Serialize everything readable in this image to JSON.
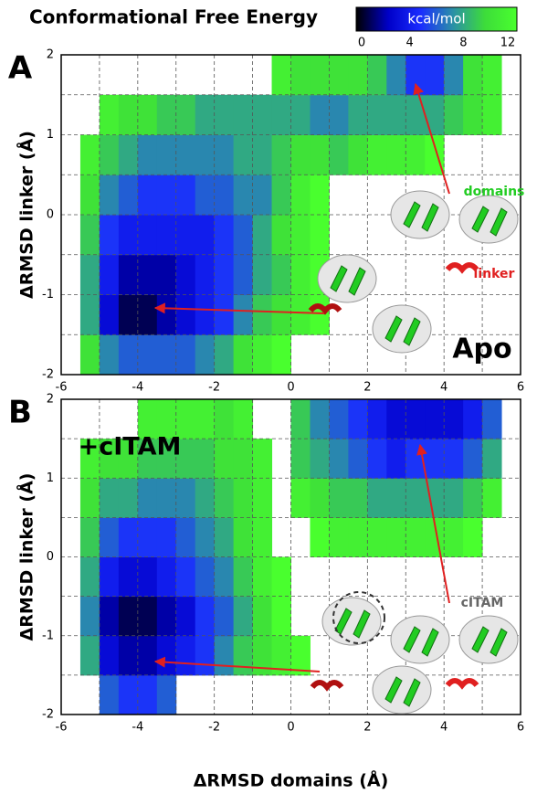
{
  "colorbar": {
    "title": "Conformational Free Energy",
    "label": "kcal/mol",
    "lim": [
      0,
      12
    ],
    "ticks": [
      0,
      4,
      8,
      12
    ],
    "colormap": [
      "#000000",
      "#0000c8",
      "#1a2cff",
      "#2a8fa8",
      "#3ddc3a",
      "#49ff2e"
    ]
  },
  "chart_data": [
    {
      "type": "heatmap",
      "panel": "A",
      "label": "Apo",
      "ylabel": "ΔRMSD linker (Å)",
      "annotations": [
        {
          "text": "domains",
          "color": "#22cc22"
        },
        {
          "text": "linker",
          "color": "#e02020"
        }
      ],
      "xlim": [
        -6,
        6
      ],
      "ylim": [
        -2,
        2
      ],
      "xticks": [
        -6,
        -4,
        -2,
        0,
        2,
        4,
        6
      ],
      "yticks": [
        -2,
        -1,
        0,
        1,
        2
      ],
      "x_minor_grid": [
        -5,
        -3,
        -1,
        1,
        3,
        5
      ],
      "y_minor_grid": [
        -1.5,
        -0.5,
        0.5,
        1.5
      ],
      "x_bins": [
        -6,
        -5.5,
        -5,
        -4.5,
        -4,
        -3.5,
        -3,
        -2.5,
        -2,
        -1.5,
        -1,
        -0.5,
        0,
        0.5,
        1,
        1.5,
        2,
        2.5,
        3,
        3.5,
        4,
        4.5,
        5,
        5.5,
        6
      ],
      "y_bins": [
        -2,
        -1.5,
        -1,
        -0.5,
        0,
        0.5,
        1,
        1.5,
        2
      ],
      "values": [
        [
          null,
          10,
          7,
          6,
          6,
          6,
          6,
          7,
          8,
          10,
          11,
          12,
          null,
          null,
          null,
          null,
          null,
          null,
          null,
          null,
          null,
          null,
          null,
          null
        ],
        [
          null,
          8,
          3,
          1,
          1,
          2,
          3,
          4,
          5,
          7,
          9,
          10,
          11,
          12,
          null,
          null,
          null,
          null,
          null,
          null,
          null,
          null,
          null,
          null
        ],
        [
          null,
          8,
          4,
          2,
          2,
          2,
          3,
          4,
          5,
          6,
          8,
          9,
          11,
          12,
          null,
          null,
          null,
          null,
          null,
          null,
          null,
          null,
          null,
          null
        ],
        [
          null,
          9,
          5,
          4,
          4,
          4,
          4,
          4,
          5,
          6,
          8,
          10,
          11,
          12,
          null,
          null,
          null,
          null,
          null,
          null,
          null,
          null,
          null,
          null
        ],
        [
          null,
          10,
          7,
          6,
          5,
          5,
          5,
          6,
          6,
          7,
          7,
          9,
          11,
          12,
          null,
          null,
          null,
          null,
          null,
          null,
          null,
          null,
          null,
          null
        ],
        [
          null,
          11,
          9,
          8,
          7,
          7,
          7,
          7,
          7,
          8,
          8,
          9,
          10,
          10,
          9,
          10,
          11,
          11,
          11,
          12,
          null,
          null,
          null,
          null
        ],
        [
          null,
          null,
          11,
          10,
          10,
          9,
          9,
          8,
          8,
          8,
          8,
          8,
          8,
          7,
          7,
          8,
          8,
          8,
          8,
          8,
          9,
          10,
          11,
          null
        ],
        [
          null,
          null,
          null,
          null,
          null,
          null,
          null,
          null,
          null,
          null,
          null,
          11,
          10,
          10,
          10,
          10,
          9,
          7,
          5,
          5,
          7,
          10,
          11,
          null
        ]
      ]
    },
    {
      "type": "heatmap",
      "panel": "B",
      "label": "+cITAM",
      "ylabel": "ΔRMSD linker (Å)",
      "xlabel": "ΔRMSD domains (Å)",
      "annotations": [
        {
          "text": "cITAM",
          "color": "#666666"
        }
      ],
      "xlim": [
        -6,
        6
      ],
      "ylim": [
        -2,
        2
      ],
      "xticks": [
        -6,
        -4,
        -2,
        0,
        2,
        4,
        6
      ],
      "yticks": [
        -2,
        -1,
        0,
        1,
        2
      ],
      "x_minor_grid": [
        -5,
        -3,
        -1,
        1,
        3,
        5
      ],
      "y_minor_grid": [
        -1.5,
        -0.5,
        0.5,
        1.5
      ],
      "x_bins": [
        -6,
        -5.5,
        -5,
        -4.5,
        -4,
        -3.5,
        -3,
        -2.5,
        -2,
        -1.5,
        -1,
        -0.5,
        0,
        0.5,
        1,
        1.5,
        2,
        2.5,
        3,
        3.5,
        4,
        4.5,
        5,
        5.5,
        6
      ],
      "y_bins": [
        -2,
        -1.5,
        -1,
        -0.5,
        0,
        0.5,
        1,
        1.5,
        2
      ],
      "values": [
        [
          null,
          null,
          6,
          5,
          5,
          6,
          null,
          null,
          null,
          null,
          null,
          null,
          null,
          null,
          null,
          null,
          null,
          null,
          null,
          null,
          null,
          null,
          null,
          null
        ],
        [
          null,
          8,
          3,
          2,
          2,
          3,
          4,
          5,
          7,
          9,
          10,
          11,
          12,
          null,
          null,
          null,
          null,
          null,
          null,
          null,
          null,
          null,
          null,
          null
        ],
        [
          null,
          7,
          2,
          1,
          1,
          2,
          3,
          5,
          6,
          8,
          10,
          12,
          null,
          null,
          null,
          null,
          null,
          null,
          null,
          null,
          null,
          null,
          null,
          null
        ],
        [
          null,
          8,
          4,
          3,
          3,
          4,
          5,
          6,
          7,
          9,
          11,
          12,
          null,
          null,
          null,
          null,
          null,
          null,
          null,
          null,
          null,
          null,
          null,
          null
        ],
        [
          null,
          9,
          6,
          5,
          5,
          5,
          6,
          7,
          8,
          10,
          11,
          null,
          null,
          12,
          11,
          11,
          11,
          11,
          11,
          11,
          11,
          12,
          null,
          null
        ],
        [
          null,
          10,
          8,
          8,
          7,
          7,
          7,
          8,
          9,
          10,
          11,
          null,
          11,
          10,
          9,
          9,
          8,
          8,
          8,
          8,
          8,
          9,
          11,
          null
        ],
        [
          null,
          11,
          10,
          10,
          9,
          9,
          9,
          9,
          10,
          10,
          11,
          null,
          9,
          8,
          7,
          6,
          5,
          4,
          5,
          5,
          5,
          6,
          8,
          null
        ],
        [
          null,
          null,
          null,
          null,
          11,
          11,
          11,
          11,
          10,
          11,
          null,
          null,
          9,
          7,
          6,
          5,
          4,
          3,
          3,
          3,
          3,
          4,
          6,
          null
        ]
      ]
    }
  ]
}
